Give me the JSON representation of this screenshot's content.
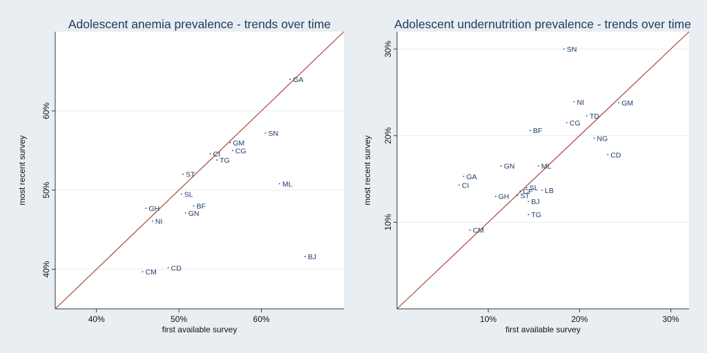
{
  "chart_data": [
    {
      "type": "scatter",
      "title": "Adolescent anemia prevalence - trends over time",
      "xlabel": "first available survey",
      "ylabel": "most recent survey",
      "xlim": [
        35,
        70
      ],
      "ylim": [
        35,
        70
      ],
      "xticks": [
        "40%",
        "50%",
        "60%"
      ],
      "xtick_values": [
        40,
        50,
        60
      ],
      "yticks": [
        "40%",
        "50%",
        "60%"
      ],
      "ytick_values": [
        40,
        50,
        60
      ],
      "reference_line": "y = x",
      "reference_color": "#a8413c",
      "marker_color": "#1a3a68",
      "grid": true,
      "points": [
        {
          "label": "GA",
          "x": 63.5,
          "y": 64.0
        },
        {
          "label": "SN",
          "x": 60.5,
          "y": 57.2
        },
        {
          "label": "GM",
          "x": 56.2,
          "y": 56.0
        },
        {
          "label": "CG",
          "x": 56.5,
          "y": 55.0
        },
        {
          "label": "CI",
          "x": 53.8,
          "y": 54.6
        },
        {
          "label": "TG",
          "x": 54.6,
          "y": 53.8
        },
        {
          "label": "ST",
          "x": 50.5,
          "y": 52.0
        },
        {
          "label": "ML",
          "x": 62.2,
          "y": 50.8
        },
        {
          "label": "SL",
          "x": 50.3,
          "y": 49.5
        },
        {
          "label": "BF",
          "x": 51.8,
          "y": 48.0
        },
        {
          "label": "GH",
          "x": 46.0,
          "y": 47.7
        },
        {
          "label": "GN",
          "x": 50.8,
          "y": 47.1
        },
        {
          "label": "NI",
          "x": 46.8,
          "y": 46.1
        },
        {
          "label": "BJ",
          "x": 65.3,
          "y": 41.6
        },
        {
          "label": "CD",
          "x": 48.7,
          "y": 40.2
        },
        {
          "label": "CM",
          "x": 45.6,
          "y": 39.7
        }
      ]
    },
    {
      "type": "scatter",
      "title": "Adolescent undernutrition prevalence - trends over time",
      "xlabel": "first available survey",
      "ylabel": "most recent survey",
      "xlim": [
        0,
        32
      ],
      "ylim": [
        0,
        32
      ],
      "xticks": [
        "10%",
        "20%",
        "30%"
      ],
      "xtick_values": [
        10,
        20,
        30
      ],
      "yticks": [
        "10%",
        "20%",
        "30%"
      ],
      "ytick_values": [
        10,
        20,
        30
      ],
      "reference_line": "y = x",
      "reference_color": "#a8413c",
      "marker_color": "#1a3a68",
      "grid": true,
      "points": [
        {
          "label": "SN",
          "x": 18.3,
          "y": 30.0
        },
        {
          "label": "GM",
          "x": 24.3,
          "y": 23.8
        },
        {
          "label": "NI",
          "x": 19.4,
          "y": 23.9
        },
        {
          "label": "TD",
          "x": 20.8,
          "y": 22.3
        },
        {
          "label": "CG",
          "x": 18.6,
          "y": 21.5
        },
        {
          "label": "BF",
          "x": 14.6,
          "y": 20.6
        },
        {
          "label": "NG",
          "x": 21.6,
          "y": 19.7
        },
        {
          "label": "CD",
          "x": 23.1,
          "y": 17.8
        },
        {
          "label": "GN",
          "x": 11.4,
          "y": 16.5
        },
        {
          "label": "ML",
          "x": 15.5,
          "y": 16.5
        },
        {
          "label": "GA",
          "x": 7.3,
          "y": 15.3
        },
        {
          "label": "CI",
          "x": 6.8,
          "y": 14.3
        },
        {
          "label": "SL",
          "x": 14.2,
          "y": 14.0
        },
        {
          "label": "LB",
          "x": 15.9,
          "y": 13.7
        },
        {
          "label": "CF",
          "x": 13.5,
          "y": 13.6
        },
        {
          "label": "ST",
          "x": 13.2,
          "y": 13.1
        },
        {
          "label": "GH",
          "x": 10.8,
          "y": 13.0
        },
        {
          "label": "BJ",
          "x": 14.4,
          "y": 12.4
        },
        {
          "label": "TG",
          "x": 14.4,
          "y": 10.9
        },
        {
          "label": "CM",
          "x": 8.0,
          "y": 9.1
        }
      ]
    }
  ]
}
